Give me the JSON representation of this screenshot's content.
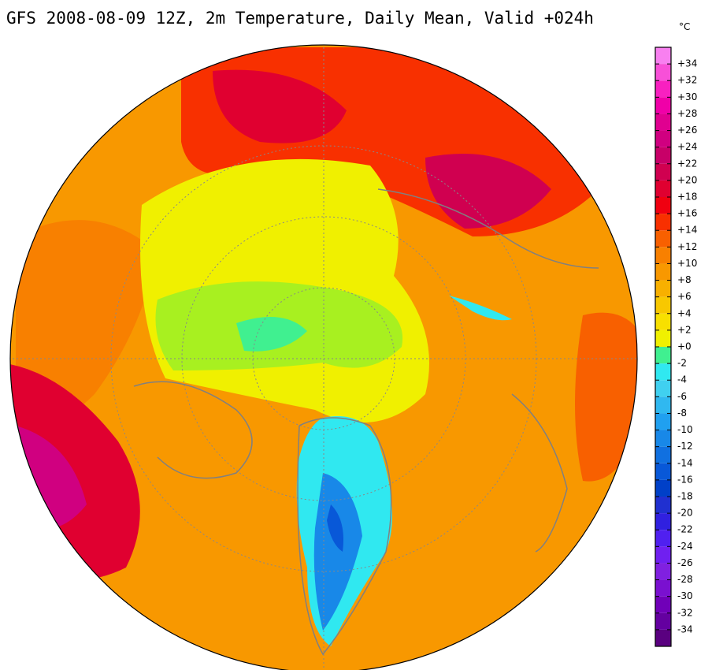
{
  "title": "GFS 2008-08-09 12Z, 2m Temperature, Daily Mean, Valid +024h",
  "colorbar": {
    "unit": "°C",
    "lim": [
      -36,
      36
    ],
    "colors": [
      "#5a0080",
      "#6400a0",
      "#7000b8",
      "#7a10d0",
      "#8020e0",
      "#7020f0",
      "#5020f0",
      "#3020e0",
      "#2030d0",
      "#0040c8",
      "#0858d8",
      "#1070e0",
      "#1888e8",
      "#20a0f0",
      "#30b8f0",
      "#40d0f0",
      "#30e8f0",
      "#40f090",
      "#f0f000",
      "#f8e000",
      "#f8c800",
      "#f8b000",
      "#f89800",
      "#f88000",
      "#f86000",
      "#f83000",
      "#f00010",
      "#e00030",
      "#d00050",
      "#c80068",
      "#d00080",
      "#e00090",
      "#f000a8",
      "#f820c0",
      "#f850d8",
      "#f880f0"
    ],
    "ticks": [
      {
        "value": 34,
        "label": "+34"
      },
      {
        "value": 32,
        "label": "+32"
      },
      {
        "value": 30,
        "label": "+30"
      },
      {
        "value": 28,
        "label": "+28"
      },
      {
        "value": 26,
        "label": "+26"
      },
      {
        "value": 24,
        "label": "+24"
      },
      {
        "value": 22,
        "label": "+22"
      },
      {
        "value": 20,
        "label": "+20"
      },
      {
        "value": 18,
        "label": "+18"
      },
      {
        "value": 16,
        "label": "+16"
      },
      {
        "value": 14,
        "label": "+14"
      },
      {
        "value": 12,
        "label": "+12"
      },
      {
        "value": 10,
        "label": "+10"
      },
      {
        "value": 8,
        "label": "+8"
      },
      {
        "value": 6,
        "label": "+6"
      },
      {
        "value": 4,
        "label": "+4"
      },
      {
        "value": 2,
        "label": "+2"
      },
      {
        "value": 0,
        "label": "+0"
      },
      -2,
      -4,
      -6,
      -8,
      -10,
      -12,
      -14,
      -16,
      -18,
      -20,
      -22,
      -24,
      -26,
      -28,
      -30,
      -32,
      -34
    ]
  }
}
